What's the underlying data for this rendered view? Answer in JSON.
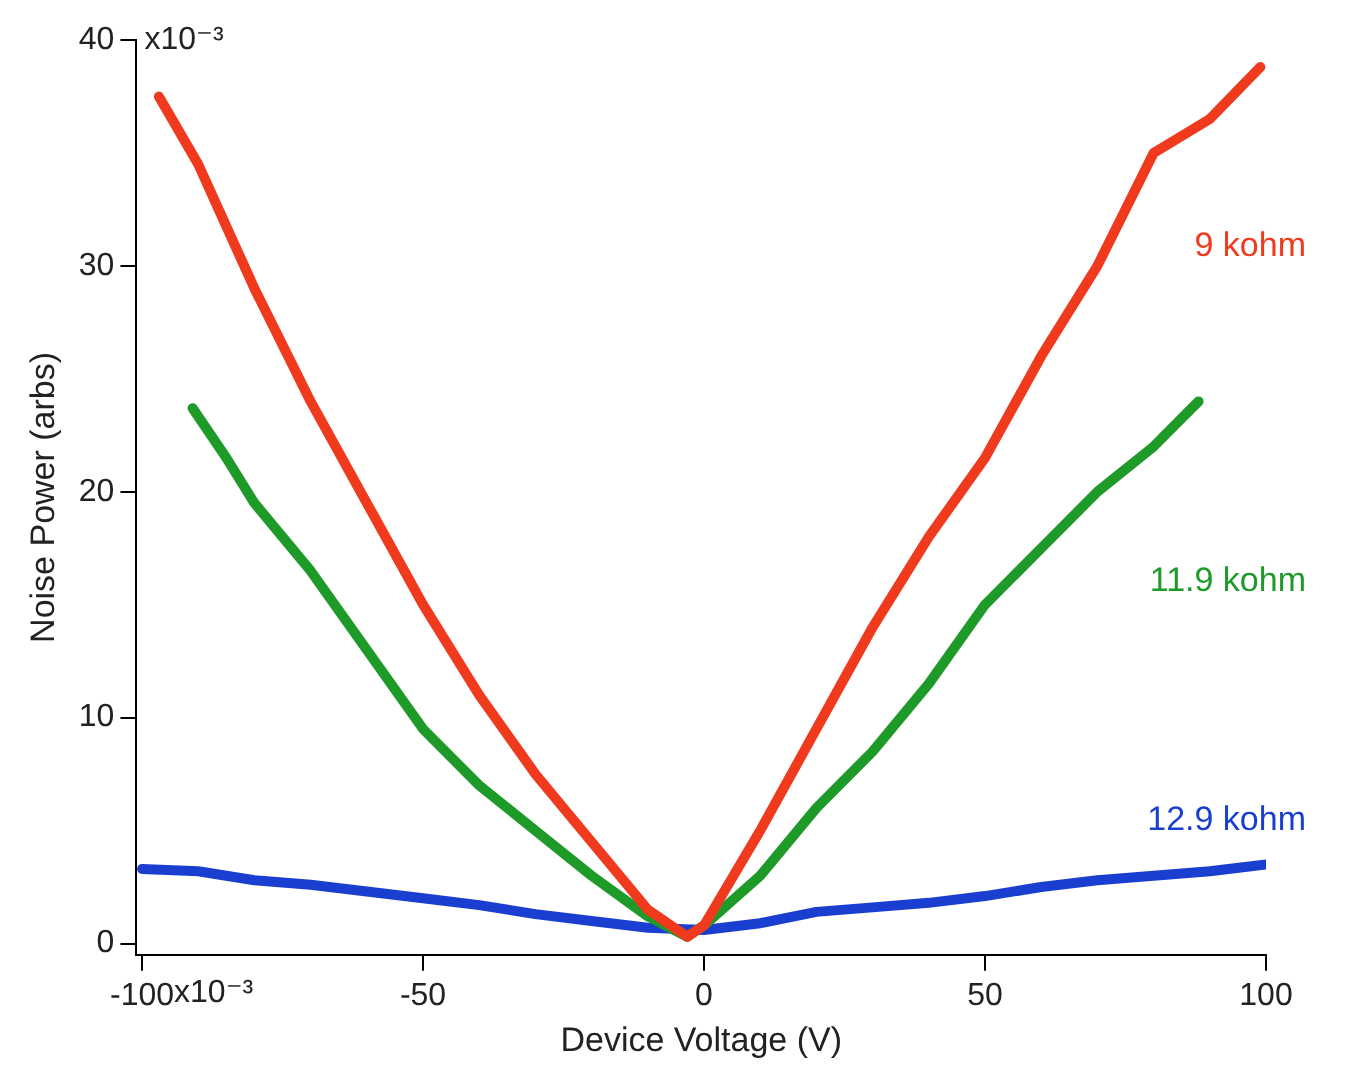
{
  "chart_data": {
    "type": "line",
    "xlabel": "Device Voltage (V)",
    "ylabel": "Noise Power (arbs)",
    "xlim": [
      -101,
      100
    ],
    "ylim": [
      -0.5,
      40
    ],
    "xticks": [
      -100,
      -50,
      0,
      50,
      100
    ],
    "yticks": [
      0,
      10,
      20,
      30,
      40
    ],
    "annotations": [
      "x10⁻³",
      "x10⁻³"
    ],
    "grid": false,
    "legend": false,
    "marker": "none",
    "line_style": "solid",
    "series": [
      {
        "name": "9 kohm",
        "color": "#f03a1e",
        "x": [
          -97,
          -90,
          -80,
          -70,
          -60,
          -50,
          -40,
          -30,
          -20,
          -10,
          -3,
          0,
          10,
          20,
          30,
          40,
          50,
          60,
          70,
          80,
          90,
          99
        ],
        "values": [
          37.5,
          34.5,
          29,
          24,
          19.5,
          15,
          11,
          7.5,
          4.5,
          1.5,
          0.3,
          0.8,
          5,
          9.5,
          14,
          18,
          21.5,
          26,
          30,
          35,
          36.5,
          38.8
        ]
      },
      {
        "name": "11.9 kohm",
        "color": "#1e9a28",
        "x": [
          -91,
          -85,
          -80,
          -70,
          -60,
          -50,
          -40,
          -30,
          -20,
          -10,
          -3,
          0,
          10,
          20,
          30,
          40,
          50,
          60,
          70,
          80,
          88
        ],
        "values": [
          23.7,
          21.5,
          19.5,
          16.5,
          13,
          9.5,
          7,
          5,
          3,
          1.2,
          0.3,
          0.8,
          3,
          6,
          8.5,
          11.5,
          15,
          17.5,
          20,
          22,
          24
        ]
      },
      {
        "name": "12.9 kohm",
        "color": "#1a3fd0",
        "x": [
          -100,
          -90,
          -80,
          -70,
          -60,
          -50,
          -40,
          -30,
          -20,
          -10,
          0,
          10,
          20,
          30,
          40,
          50,
          60,
          70,
          80,
          90,
          100
        ],
        "values": [
          3.3,
          3.2,
          2.8,
          2.6,
          2.3,
          2,
          1.7,
          1.3,
          1,
          0.7,
          0.6,
          0.9,
          1.4,
          1.6,
          1.8,
          2.1,
          2.5,
          2.8,
          3,
          3.2,
          3.5
        ]
      }
    ]
  }
}
